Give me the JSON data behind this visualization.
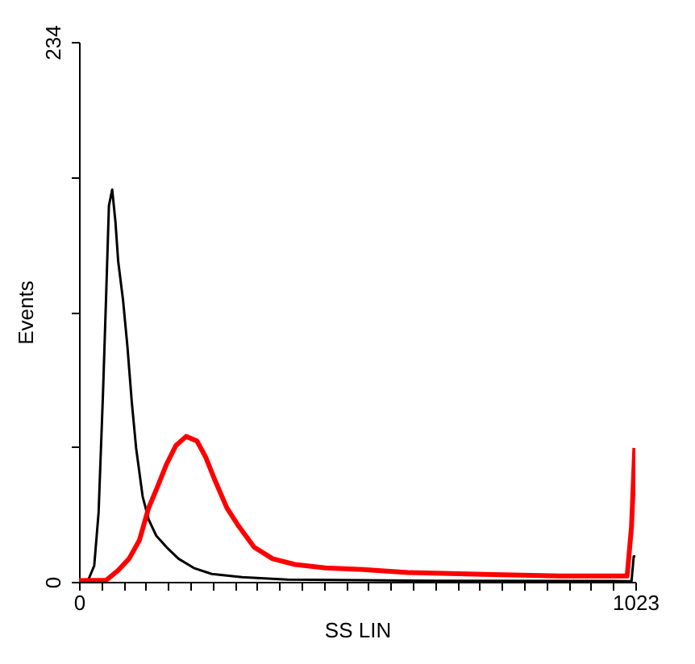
{
  "chart_data": {
    "type": "line",
    "xlabel": "SS LIN",
    "ylabel": "Events",
    "xlim": [
      0,
      1023
    ],
    "ylim": [
      0,
      234
    ],
    "xticks": [
      0,
      {
        "value": 40.92,
        "label": null
      },
      {
        "value": 81.84,
        "label": null
      },
      {
        "value": 122.76,
        "label": null
      },
      {
        "value": 163.68,
        "label": null
      },
      {
        "value": 204.6,
        "label": null
      },
      {
        "value": 245.52,
        "label": null
      },
      {
        "value": 286.44,
        "label": null
      },
      {
        "value": 327.36,
        "label": null
      },
      {
        "value": 368.28,
        "label": null
      },
      {
        "value": 409.2,
        "label": null
      },
      {
        "value": 450.12,
        "label": null
      },
      {
        "value": 491.04,
        "label": null
      },
      {
        "value": 531.96,
        "label": null
      },
      {
        "value": 572.88,
        "label": null
      },
      {
        "value": 613.8,
        "label": null
      },
      {
        "value": 654.72,
        "label": null
      },
      {
        "value": 695.64,
        "label": null
      },
      {
        "value": 736.56,
        "label": null
      },
      {
        "value": 777.48,
        "label": null
      },
      {
        "value": 818.4,
        "label": null
      },
      {
        "value": 859.32,
        "label": null
      },
      {
        "value": 900.24,
        "label": null
      },
      {
        "value": 941.16,
        "label": null
      },
      {
        "value": 982.08,
        "label": null
      },
      1023
    ],
    "yticks": [
      0,
      {
        "value": 58.5,
        "label": null
      },
      {
        "value": 117,
        "label": null
      },
      {
        "value": 175.5,
        "label": null
      },
      234
    ],
    "grid": false,
    "legend": false,
    "series": [
      {
        "color": "#000000",
        "x": [
          0,
          17,
          28,
          36,
          44,
          50,
          55,
          61,
          67,
          72,
          81,
          89,
          97,
          105,
          117,
          128,
          142,
          161,
          183,
          211,
          244,
          300,
          383,
          522,
          661,
          1008,
          1016,
          1020,
          1023
        ],
        "values": [
          0.8,
          0.8,
          7,
          30,
          81,
          125,
          163,
          170,
          156,
          139,
          122,
          102,
          78,
          58,
          37,
          27,
          20,
          15,
          10,
          6,
          3.4,
          2,
          1,
          0.7,
          0.4,
          0.3,
          0.3,
          11,
          11
        ]
      },
      {
        "color": "#ff0000",
        "x": [
          0,
          50,
          72,
          92,
          111,
          128,
          144,
          161,
          178,
          197,
          217,
          233,
          250,
          272,
          294,
          322,
          356,
          397,
          453,
          522,
          605,
          744,
          883,
          1008,
          1016,
          1022
        ],
        "values": [
          0.5,
          0.7,
          5,
          10,
          18,
          32,
          41,
          51,
          59,
          63,
          61,
          54,
          44,
          32,
          24,
          15,
          10,
          7.5,
          6,
          5.3,
          4,
          3.2,
          2.5,
          2.5,
          24,
          58
        ]
      }
    ]
  }
}
